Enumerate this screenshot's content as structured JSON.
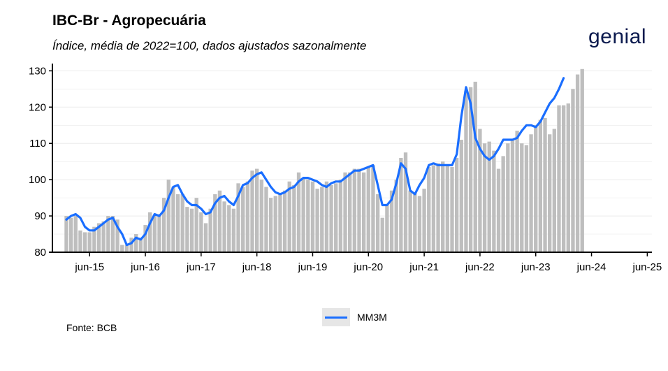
{
  "header": {
    "title": "IBC-Br - Agropecuária",
    "subtitle": "Índice, média de 2022=100, dados ajustados sazonalmente",
    "logo": "genial"
  },
  "footer": {
    "source": "Fonte: BCB"
  },
  "colors": {
    "bars": "#bebebe",
    "line": "#1a6eff",
    "grid": "#ebebeb"
  },
  "chart_data": {
    "type": "bar",
    "x_start": "2015-01",
    "x_end": "2025-04",
    "ylim": [
      80,
      132
    ],
    "y_ticks": [
      80,
      90,
      100,
      110,
      120,
      130
    ],
    "x_ticks": [
      "jun-15",
      "jun-16",
      "jun-17",
      "jun-18",
      "jun-19",
      "jun-20",
      "jun-21",
      "jun-22",
      "jun-23",
      "jun-24",
      "jun-25"
    ],
    "grid": true,
    "legend_position": "bottom",
    "series": [
      {
        "kind": "bar",
        "values": [
          90,
          89.5,
          90,
          86,
          85.5,
          85.5,
          87,
          88,
          88.5,
          90,
          90,
          89,
          82,
          82,
          84,
          85,
          84,
          87.5,
          91,
          90,
          90.5,
          95,
          100,
          98,
          96,
          96,
          92.5,
          92,
          95,
          91,
          88,
          92,
          96,
          97,
          94,
          93,
          92,
          99,
          98,
          99.5,
          102.5,
          103,
          100,
          98,
          95,
          95.5,
          96,
          97,
          99.5,
          98.5,
          102,
          100.5,
          100,
          99.5,
          97.5,
          98,
          99.5,
          98.5,
          99,
          100,
          102,
          102,
          103,
          103,
          102,
          103.5,
          104,
          96,
          89.5,
          93,
          97,
          100,
          106,
          107.5,
          97,
          96.5,
          95.5,
          97.5,
          103.5,
          104,
          104.5,
          105,
          104,
          103.5,
          106,
          111,
          124.5,
          125.5,
          127,
          114,
          110,
          110.5,
          108,
          103,
          106.5,
          110,
          111,
          113.5,
          110,
          109.5,
          112.5,
          115,
          116.5,
          117,
          112.5,
          114,
          120.5,
          120.5,
          121,
          125,
          129,
          130.5
        ],
        "mm3m": [
          89,
          90,
          90.5,
          89.5,
          87,
          86,
          86,
          87,
          88,
          89,
          89.5,
          87,
          85,
          82,
          82.5,
          84,
          83.5,
          85,
          88,
          90.5,
          90,
          91.5,
          95,
          98,
          98.5,
          96,
          94,
          93,
          93,
          92,
          90.5,
          91,
          93.5,
          95,
          95.5,
          94,
          93,
          95.5,
          98.5,
          99,
          100.5,
          101.5,
          102,
          100,
          98,
          96.5,
          96,
          96.5,
          97.5,
          98,
          99.5,
          100.5,
          100.5,
          100,
          99.5,
          98.5,
          98,
          99,
          99.5,
          99.5,
          100.5,
          101.5,
          102.5,
          102.5,
          103,
          103.5,
          104,
          98.5,
          93,
          93,
          94.5,
          99,
          104.5,
          103,
          97,
          96,
          98.5,
          100.5,
          104,
          104.5,
          104,
          104,
          104,
          104,
          107,
          117.5,
          125.5,
          121,
          111.5,
          108.5,
          106.5,
          105.5,
          106.5,
          108.5,
          111,
          111,
          111,
          111.5,
          113.5,
          115,
          115,
          114.5,
          116,
          118.5,
          121,
          122.5,
          125,
          128
        ]
      }
    ],
    "legend": [
      "MM3M"
    ]
  }
}
